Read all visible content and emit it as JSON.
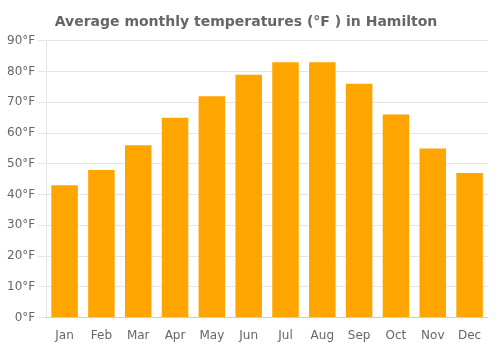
{
  "chart_data": {
    "type": "bar",
    "title": "Average monthly temperatures (°F ) in Hamilton",
    "categories": [
      "Jan",
      "Feb",
      "Mar",
      "Apr",
      "May",
      "Jun",
      "Jul",
      "Aug",
      "Sep",
      "Oct",
      "Nov",
      "Dec"
    ],
    "values": [
      43,
      48,
      56,
      65,
      72,
      79,
      83,
      83,
      76,
      66,
      55,
      47
    ],
    "color": "#FFA500",
    "ylim": [
      0,
      90
    ],
    "yticks": [
      {
        "value": 0,
        "label": "0°F"
      },
      {
        "value": 10,
        "label": "10°F"
      },
      {
        "value": 20,
        "label": "20°F"
      },
      {
        "value": 30,
        "label": "30°F"
      },
      {
        "value": 40,
        "label": "40°F"
      },
      {
        "value": 50,
        "label": "50°F"
      },
      {
        "value": 60,
        "label": "60°F"
      },
      {
        "value": 70,
        "label": "70°F"
      },
      {
        "value": 80,
        "label": "80°F"
      },
      {
        "value": 90,
        "label": "90°F"
      }
    ],
    "grid": true
  }
}
